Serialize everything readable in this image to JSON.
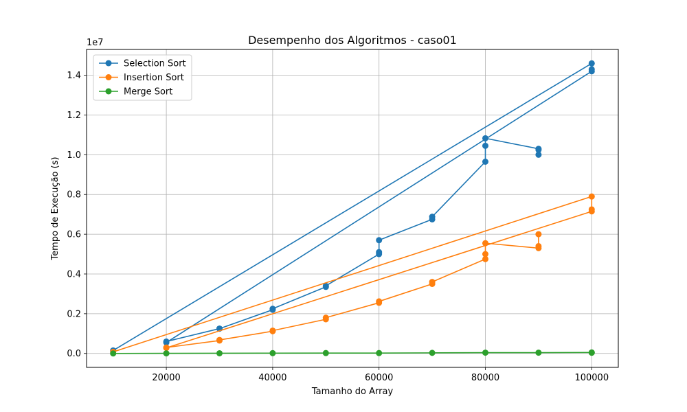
{
  "chart_data": {
    "type": "line",
    "title": "Desempenho dos Algoritmos - caso01",
    "xlabel": "Tamanho do Array",
    "ylabel": "Tempo de Execução (s)",
    "y_multiplier": "1e7",
    "xlim": [
      5000,
      105000
    ],
    "ylim": [
      -700000,
      15300000
    ],
    "x_ticks": [
      20000,
      40000,
      60000,
      80000,
      100000
    ],
    "y_ticks": [
      0,
      2000000,
      4000000,
      6000000,
      8000000,
      10000000,
      12000000,
      14000000
    ],
    "y_tick_labels": [
      "0.0",
      "0.2",
      "0.4",
      "0.6",
      "0.8",
      "1.0",
      "1.2",
      "1.4"
    ],
    "grid": true,
    "legend_position": "top-left",
    "series": [
      {
        "name": "Selection Sort",
        "color": "#1f77b4",
        "x": [
          10000,
          100000,
          100000,
          100000,
          20000,
          20000,
          30000,
          30000,
          40000,
          40000,
          50000,
          50000,
          60000,
          60000,
          60000,
          70000,
          70000,
          80000,
          80000,
          80000,
          90000,
          90000,
          90000
        ],
        "y": [
          150000,
          14600000,
          14300000,
          14200000,
          550000,
          600000,
          1250000,
          1250000,
          2200000,
          2250000,
          3350000,
          3400000,
          5000000,
          5100000,
          5700000,
          6750000,
          6880000,
          9650000,
          10450000,
          10830000,
          10300000,
          10250000,
          10000000
        ]
      },
      {
        "name": "Insertion Sort",
        "color": "#ff7f0e",
        "x": [
          10000,
          100000,
          100000,
          100000,
          20000,
          20000,
          30000,
          30000,
          40000,
          40000,
          50000,
          50000,
          60000,
          60000,
          70000,
          70000,
          80000,
          80000,
          80000,
          90000,
          90000,
          90000
        ],
        "y": [
          80000,
          7900000,
          7250000,
          7150000,
          280000,
          300000,
          650000,
          680000,
          1120000,
          1150000,
          1720000,
          1800000,
          2550000,
          2620000,
          3500000,
          3600000,
          4750000,
          5000000,
          5550000,
          5300000,
          5400000,
          6000000
        ]
      },
      {
        "name": "Merge Sort",
        "color": "#2ca02c",
        "x": [
          10000,
          20000,
          30000,
          40000,
          50000,
          60000,
          70000,
          80000,
          90000,
          100000,
          100000
        ],
        "y": [
          0,
          5000,
          10000,
          15000,
          20000,
          20000,
          30000,
          40000,
          40000,
          50000,
          35000
        ]
      }
    ]
  }
}
